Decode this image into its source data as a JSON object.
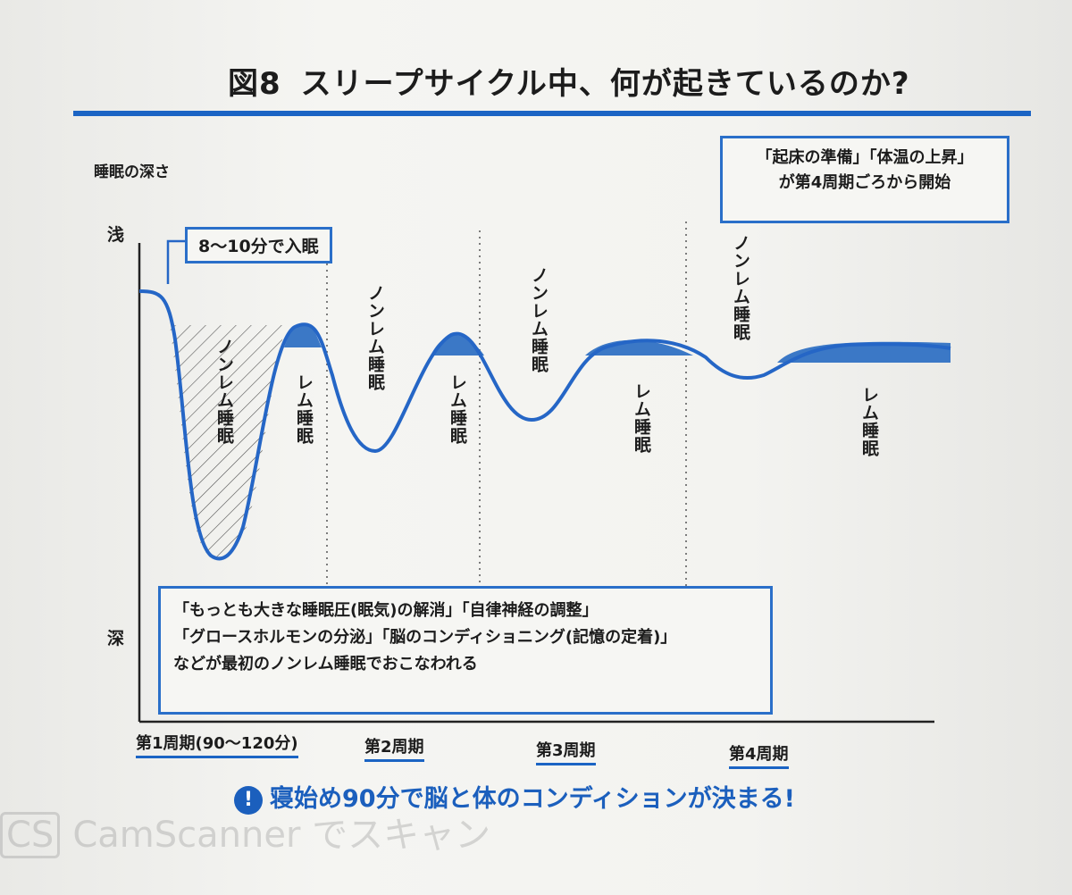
{
  "title": {
    "figure": "図8",
    "text": "スリープサイクル中、何が起きているのか?"
  },
  "y_axis": {
    "label": "睡眠の深さ",
    "shallow": "浅",
    "deep": "深"
  },
  "callouts": {
    "sleep_onset": "8〜10分で入眠",
    "wake_prep": [
      "「起床の準備」「体温の上昇」",
      "が第4周期ごろから開始"
    ],
    "first_nrem": [
      "「もっとも大きな睡眠圧(眠気)の解消」「自律神経の調整」",
      "「グロースホルモンの分泌」「脳のコンディショニング(記憶の定着)」",
      "などが最初のノンレム睡眠でおこなわれる"
    ]
  },
  "stages": {
    "nrem": "ノンレム睡眠",
    "rem": "レム睡眠"
  },
  "cycles": [
    "第1周期(90〜120分)",
    "第2周期",
    "第3周期",
    "第4周期"
  ],
  "footer": {
    "icon": "alert-icon",
    "text": "寝始め90分で脳と体のコンディションが決まる!"
  },
  "watermark": {
    "badge": "CS",
    "text": "CamScanner でスキャン"
  },
  "colors": {
    "accent": "#1b64c4",
    "curve": "#2566c6",
    "rem_fill": "#3b78c6"
  }
}
